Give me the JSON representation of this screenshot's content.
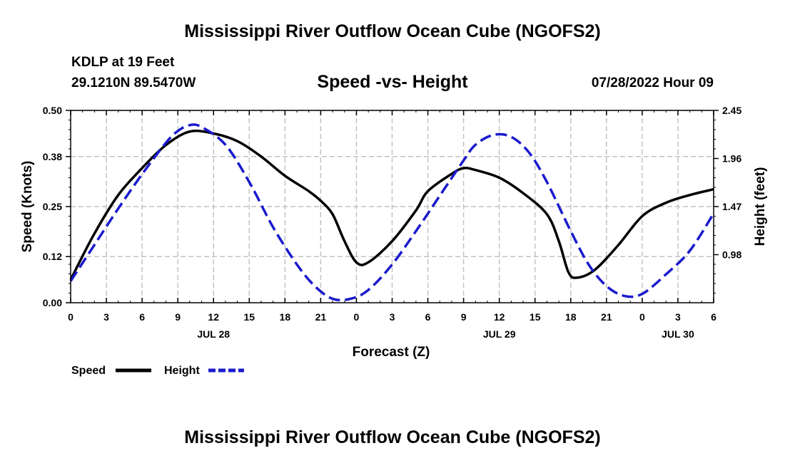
{
  "header": {
    "title": "Mississippi River Outflow Ocean Cube (NGOFS2)",
    "station": "KDLP at 19 Feet",
    "location": "29.1210N  89.5470W",
    "subtitle": "Speed -vs- Height",
    "datetime": "07/28/2022 Hour 09"
  },
  "footer": {
    "title": "Mississippi River Outflow Ocean Cube (NGOFS2)"
  },
  "chart_data": {
    "type": "line",
    "title": "Speed -vs- Height",
    "xlabel": "Forecast (Z)",
    "ylabel": "Speed (Knots)",
    "y2label": "Height (feet)",
    "x_range_hours": [
      0,
      54
    ],
    "x_ticks": [
      {
        "hour": 0,
        "label": "0"
      },
      {
        "hour": 3,
        "label": "3"
      },
      {
        "hour": 6,
        "label": "6"
      },
      {
        "hour": 9,
        "label": "9"
      },
      {
        "hour": 12,
        "label": "12"
      },
      {
        "hour": 15,
        "label": "15"
      },
      {
        "hour": 18,
        "label": "18"
      },
      {
        "hour": 21,
        "label": "21"
      },
      {
        "hour": 24,
        "label": "0"
      },
      {
        "hour": 27,
        "label": "3"
      },
      {
        "hour": 30,
        "label": "6"
      },
      {
        "hour": 33,
        "label": "9"
      },
      {
        "hour": 36,
        "label": "12"
      },
      {
        "hour": 39,
        "label": "15"
      },
      {
        "hour": 42,
        "label": "18"
      },
      {
        "hour": 45,
        "label": "21"
      },
      {
        "hour": 48,
        "label": "0"
      },
      {
        "hour": 51,
        "label": "3"
      },
      {
        "hour": 54,
        "label": "6"
      }
    ],
    "date_labels": [
      {
        "hour": 12,
        "label": "JUL 28"
      },
      {
        "hour": 36,
        "label": "JUL 29"
      },
      {
        "hour": 51,
        "label": "JUL 30"
      }
    ],
    "ylim": [
      0,
      0.5
    ],
    "y_ticks": [
      0.5,
      0.38,
      0.25,
      0.12,
      0.0
    ],
    "y_tick_labels": [
      "0.50",
      "0.38",
      "0.25",
      "0.12",
      "0.00"
    ],
    "y2lim": [
      0.49,
      2.45
    ],
    "y2_ticks": [
      2.45,
      1.96,
      1.47,
      0.98
    ],
    "y2_tick_labels": [
      "2.45",
      "1.96",
      "1.47",
      "0.98"
    ],
    "grid": true,
    "legend": [
      {
        "name": "Speed",
        "color": "#000000",
        "style": "solid"
      },
      {
        "name": "Height",
        "color": "#1a1acc",
        "style": "dashed"
      }
    ],
    "series": [
      {
        "name": "Speed",
        "axis": "left",
        "color": "#000000",
        "points": [
          [
            0,
            0.06
          ],
          [
            2,
            0.18
          ],
          [
            4,
            0.28
          ],
          [
            6,
            0.35
          ],
          [
            8,
            0.41
          ],
          [
            10,
            0.445
          ],
          [
            12,
            0.44
          ],
          [
            14,
            0.42
          ],
          [
            16,
            0.38
          ],
          [
            18,
            0.33
          ],
          [
            20,
            0.29
          ],
          [
            21,
            0.265
          ],
          [
            22,
            0.23
          ],
          [
            23,
            0.16
          ],
          [
            24,
            0.105
          ],
          [
            25,
            0.105
          ],
          [
            27,
            0.16
          ],
          [
            29,
            0.24
          ],
          [
            30,
            0.29
          ],
          [
            32,
            0.335
          ],
          [
            33,
            0.35
          ],
          [
            34,
            0.345
          ],
          [
            36,
            0.325
          ],
          [
            38,
            0.285
          ],
          [
            40,
            0.23
          ],
          [
            41,
            0.16
          ],
          [
            41.8,
            0.08
          ],
          [
            42.5,
            0.065
          ],
          [
            44,
            0.085
          ],
          [
            46,
            0.15
          ],
          [
            48,
            0.225
          ],
          [
            50,
            0.26
          ],
          [
            52,
            0.28
          ],
          [
            54,
            0.295
          ]
        ]
      },
      {
        "name": "Height",
        "axis": "right",
        "color": "#1a1acc",
        "points": [
          [
            0,
            0.71
          ],
          [
            2,
            1.08
          ],
          [
            4,
            1.45
          ],
          [
            6,
            1.8
          ],
          [
            8,
            2.12
          ],
          [
            9,
            2.24
          ],
          [
            10,
            2.3
          ],
          [
            11,
            2.28
          ],
          [
            13,
            2.1
          ],
          [
            15,
            1.72
          ],
          [
            17,
            1.26
          ],
          [
            19,
            0.88
          ],
          [
            20.5,
            0.66
          ],
          [
            22,
            0.53
          ],
          [
            23.5,
            0.53
          ],
          [
            25,
            0.62
          ],
          [
            27,
            0.88
          ],
          [
            29,
            1.22
          ],
          [
            31,
            1.58
          ],
          [
            33,
            1.94
          ],
          [
            34,
            2.1
          ],
          [
            35.5,
            2.2
          ],
          [
            37,
            2.18
          ],
          [
            38.5,
            2.02
          ],
          [
            40,
            1.72
          ],
          [
            42,
            1.22
          ],
          [
            43.5,
            0.88
          ],
          [
            45,
            0.66
          ],
          [
            46.5,
            0.56
          ],
          [
            48,
            0.58
          ],
          [
            50,
            0.78
          ],
          [
            52,
            1.02
          ],
          [
            54,
            1.4
          ]
        ]
      }
    ]
  }
}
